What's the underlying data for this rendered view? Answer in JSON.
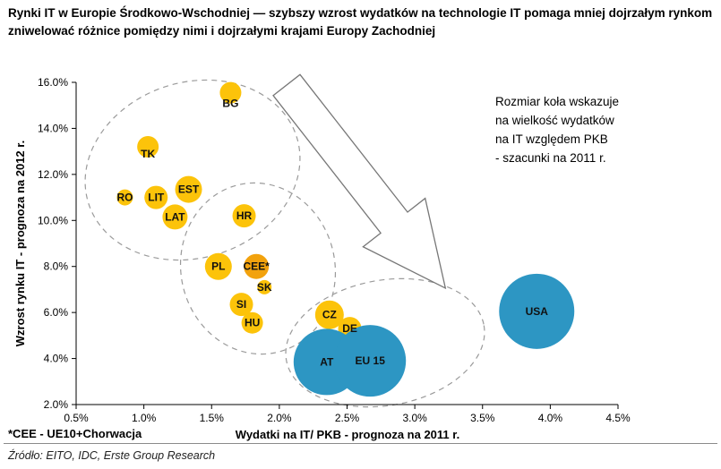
{
  "title": "Rynki IT w Europie Środkowo-Wschodniej — szybszy wzrost wydatków na technologie IT pomaga mniej dojrzałym rynkom zniwelować różnice pomiędzy nimi i dojrzałymi krajami Europy Zachodniej",
  "annotation": {
    "lines": [
      "Rozmiar koła wskazuje",
      "na wielkość wydatków",
      "na IT względem PKB",
      "- szacunki na 2011 r."
    ]
  },
  "footnote": "*CEE - UE10+Chorwacja",
  "source": "Źródło: EITO, IDC, Erste Group Research",
  "chart_data": {
    "type": "scatter",
    "subtype": "bubble",
    "xlabel": "Wydatki na IT/ PKB - prognoza na 2011 r.",
    "ylabel": "Wzrost rynku IT - prognoza na 2012 r.",
    "xlim": [
      0.5,
      4.5
    ],
    "ylim": [
      2.0,
      16.0
    ],
    "x_ticks": [
      "0.5%",
      "1.0%",
      "1.5%",
      "2.0%",
      "2.5%",
      "3.0%",
      "3.5%",
      "4.0%",
      "4.5%"
    ],
    "y_ticks": [
      "2.0%",
      "4.0%",
      "6.0%",
      "8.0%",
      "10.0%",
      "12.0%",
      "14.0%",
      "16.0%"
    ],
    "grid": false,
    "legend": "none",
    "colors": {
      "cee": "#FCC30A",
      "cee_highlight": "#F2A20D",
      "mature": "#2D96C3"
    },
    "bubbles": [
      {
        "label": "BG",
        "x": 1.64,
        "y": 15.55,
        "r": 12,
        "color": "cee",
        "ldy": 12
      },
      {
        "label": "TK",
        "x": 1.03,
        "y": 13.2,
        "r": 12,
        "color": "cee",
        "ldy": 8
      },
      {
        "label": "RO",
        "x": 0.86,
        "y": 11.0,
        "r": 9,
        "color": "cee",
        "ldy": 0
      },
      {
        "label": "LIT",
        "x": 1.09,
        "y": 11.0,
        "r": 13,
        "color": "cee",
        "ldy": 0
      },
      {
        "label": "EST",
        "x": 1.33,
        "y": 11.35,
        "r": 15,
        "color": "cee",
        "ldy": 0
      },
      {
        "label": "LAT",
        "x": 1.23,
        "y": 10.15,
        "r": 14,
        "color": "cee",
        "ldy": 0
      },
      {
        "label": "HR",
        "x": 1.74,
        "y": 10.2,
        "r": 13,
        "color": "cee",
        "ldy": 0
      },
      {
        "label": "PL",
        "x": 1.55,
        "y": 8.0,
        "r": 15,
        "color": "cee",
        "ldy": 0
      },
      {
        "label": "CEE*",
        "x": 1.83,
        "y": 8.0,
        "r": 14,
        "color": "cee_highlight",
        "ldy": 0
      },
      {
        "label": "SK",
        "x": 1.89,
        "y": 7.1,
        "r": 8,
        "color": "cee",
        "ldy": 0
      },
      {
        "label": "SI",
        "x": 1.72,
        "y": 6.35,
        "r": 13,
        "color": "cee",
        "ldy": 0
      },
      {
        "label": "HU",
        "x": 1.8,
        "y": 5.55,
        "r": 12,
        "color": "cee",
        "ldy": 0
      },
      {
        "label": "CZ",
        "x": 2.37,
        "y": 5.9,
        "r": 16,
        "color": "cee",
        "ldy": 0
      },
      {
        "label": "DE",
        "x": 2.52,
        "y": 5.3,
        "r": 13,
        "color": "cee",
        "ldy": 0
      },
      {
        "label": "AT",
        "x": 2.35,
        "y": 3.85,
        "r": 37,
        "color": "mature",
        "ldy": 0
      },
      {
        "label": "EU 15",
        "x": 2.67,
        "y": 3.9,
        "r": 40,
        "color": "mature",
        "ldy": 0
      },
      {
        "label": "USA",
        "x": 3.9,
        "y": 6.05,
        "r": 42,
        "color": "mature",
        "ldy": 0
      }
    ]
  }
}
